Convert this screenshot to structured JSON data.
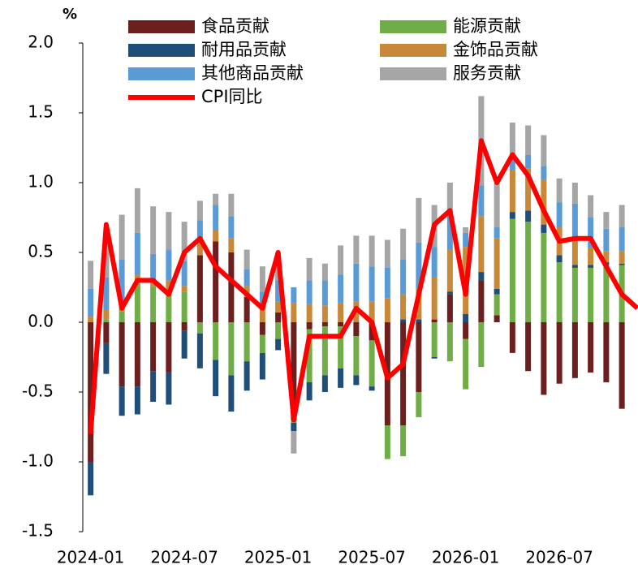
{
  "chart_data": {
    "type": "bar",
    "unit": "%",
    "categories": [
      "2024-01",
      null,
      null,
      null,
      null,
      null,
      "2024-07",
      null,
      null,
      null,
      null,
      null,
      "2025-01",
      null,
      null,
      null,
      null,
      null,
      "2025-07",
      null,
      null,
      null,
      null,
      null,
      "2026-01",
      null,
      null,
      null,
      null,
      null,
      "2026-07",
      null,
      null,
      null,
      null,
      null
    ],
    "series": [
      {
        "name": "食品贡献",
        "color": "#6b1f1f",
        "values": [
          -1.0,
          -0.15,
          -0.46,
          -0.46,
          -0.35,
          -0.36,
          -0.06,
          0.48,
          0.58,
          0.5,
          0.18,
          -0.09,
          0.07,
          -0.7,
          -0.05,
          -0.03,
          -0.03,
          -0.1,
          -0.13,
          -0.74,
          -0.74,
          -0.5,
          0.02,
          0.2,
          -0.12,
          0.3,
          0.05,
          -0.22,
          -0.35,
          -0.52,
          -0.44,
          -0.4,
          -0.36,
          -0.43,
          -0.62,
          null
        ]
      },
      {
        "name": "能源贡献",
        "color": "#70ad47",
        "values": [
          0.0,
          0.02,
          0.08,
          0.28,
          0.26,
          0.2,
          0.22,
          -0.08,
          -0.27,
          -0.38,
          -0.28,
          -0.13,
          -0.12,
          -0.02,
          -0.38,
          -0.35,
          -0.3,
          -0.28,
          -0.33,
          -0.24,
          -0.22,
          -0.18,
          -0.25,
          -0.28,
          -0.36,
          -0.32,
          0.15,
          0.74,
          0.72,
          0.64,
          0.43,
          0.39,
          0.39,
          0.41,
          0.41,
          null
        ]
      },
      {
        "name": "耐用品贡献",
        "color": "#1f4e79",
        "values": [
          -0.24,
          -0.22,
          -0.21,
          -0.2,
          -0.22,
          -0.23,
          -0.2,
          -0.25,
          -0.26,
          -0.26,
          -0.21,
          -0.19,
          -0.08,
          -0.06,
          -0.13,
          -0.12,
          -0.14,
          -0.07,
          -0.03,
          0.0,
          0.02,
          0.02,
          -0.01,
          0.02,
          0.06,
          0.06,
          0.04,
          0.05,
          0.08,
          0.06,
          0.05,
          0.02,
          0.02,
          0.02,
          0.01,
          null
        ]
      },
      {
        "name": "金饰品贡献",
        "color": "#c8883a",
        "values": [
          0.04,
          0.07,
          0.05,
          0.06,
          0.03,
          0.1,
          0.04,
          0.1,
          0.08,
          0.1,
          0.08,
          0.12,
          0.08,
          0.14,
          0.13,
          0.12,
          0.14,
          0.15,
          0.15,
          0.17,
          0.18,
          0.22,
          0.3,
          0.3,
          0.48,
          0.4,
          0.36,
          0.3,
          0.3,
          0.32,
          0.2,
          0.2,
          0.12,
          0.08,
          0.09,
          null
        ]
      },
      {
        "name": "其他商品贡献",
        "color": "#5b9bd5",
        "values": [
          0.2,
          0.23,
          0.32,
          0.3,
          0.2,
          0.22,
          0.18,
          0.15,
          0.18,
          0.16,
          0.12,
          0.1,
          0.15,
          0.11,
          0.17,
          0.18,
          0.2,
          0.27,
          0.25,
          0.22,
          0.25,
          0.33,
          0.22,
          0.28,
          0.1,
          0.22,
          0.08,
          0.1,
          0.1,
          0.1,
          0.18,
          0.24,
          0.22,
          0.16,
          0.17,
          null
        ]
      },
      {
        "name": "服务贡献",
        "color": "#a5a5a5",
        "values": [
          0.2,
          0.35,
          0.32,
          0.32,
          0.34,
          0.27,
          0.28,
          0.14,
          0.08,
          0.16,
          0.14,
          0.18,
          0.2,
          -0.16,
          0.16,
          0.12,
          0.21,
          0.2,
          0.22,
          0.2,
          0.22,
          0.32,
          0.3,
          0.2,
          0.04,
          0.64,
          0.32,
          0.24,
          0.21,
          0.22,
          0.17,
          0.15,
          0.16,
          0.12,
          0.16,
          null
        ]
      },
      {
        "name": "CPI同比",
        "color": "#ff0000",
        "type": "line",
        "values": [
          -0.8,
          0.7,
          0.1,
          0.3,
          0.3,
          0.2,
          0.5,
          0.6,
          0.4,
          0.3,
          0.2,
          0.1,
          0.5,
          -0.7,
          -0.1,
          -0.1,
          -0.1,
          0.1,
          0.0,
          -0.4,
          -0.3,
          0.2,
          0.7,
          0.8,
          0.2,
          1.3,
          1.0,
          1.2,
          1.05,
          0.8,
          0.58,
          0.6,
          0.6,
          0.4,
          0.2,
          0.1
        ]
      }
    ],
    "ylim": [
      -1.5,
      2.0
    ],
    "yticks": [
      {
        "value": 2,
        "label": "2.0"
      },
      1.5,
      {
        "value": 1,
        "label": "1.0"
      },
      0.5,
      {
        "value": 0,
        "label": "0.0"
      },
      -0.5,
      {
        "value": -1,
        "label": "-1.0"
      },
      -1.5
    ]
  }
}
